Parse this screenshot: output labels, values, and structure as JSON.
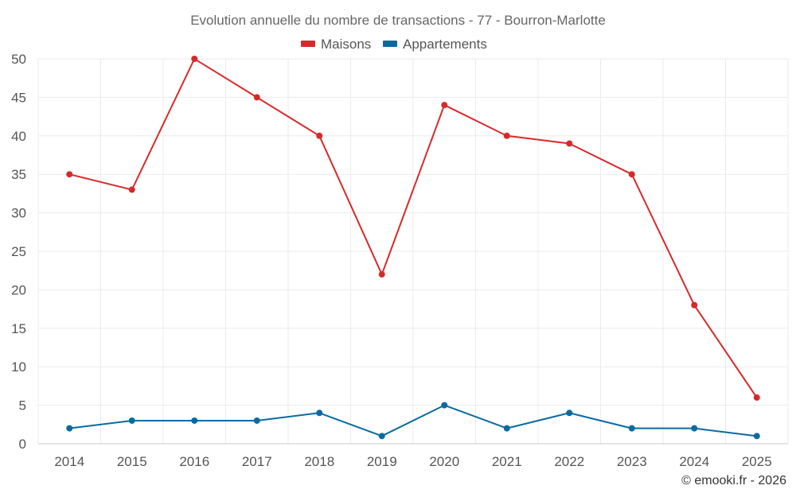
{
  "chart_data": {
    "type": "line",
    "title": "Evolution annuelle du nombre de transactions - 77 - Bourron-Marlotte",
    "categories": [
      "2014",
      "2015",
      "2016",
      "2017",
      "2018",
      "2019",
      "2020",
      "2021",
      "2022",
      "2023",
      "2024",
      "2025"
    ],
    "series": [
      {
        "name": "Maisons",
        "color": "#d62a2a",
        "values": [
          35,
          33,
          50,
          45,
          40,
          22,
          44,
          40,
          39,
          35,
          18,
          6
        ]
      },
      {
        "name": "Appartements",
        "color": "#0a6aa0",
        "values": [
          2,
          3,
          3,
          3,
          4,
          1,
          5,
          2,
          4,
          2,
          2,
          1
        ]
      }
    ],
    "ylim": [
      0,
      50
    ],
    "yticks": [
      0,
      5,
      10,
      15,
      20,
      25,
      30,
      35,
      40,
      45,
      50
    ],
    "grid": true,
    "legend_position": "top-center",
    "xlabel": "",
    "ylabel": ""
  },
  "credit": "© emooki.fr - 2026"
}
